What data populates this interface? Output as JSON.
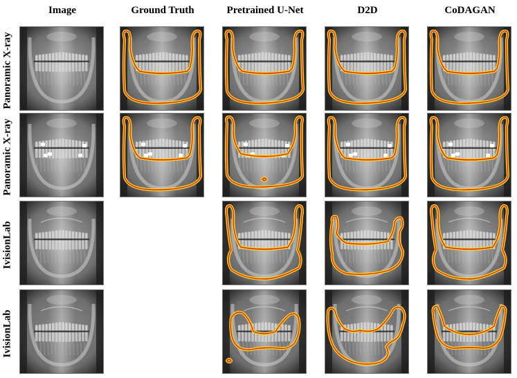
{
  "columns": [
    "Image",
    "Ground Truth",
    "Pretrained U-Net",
    "D2D",
    "CoDAGAN"
  ],
  "rows": [
    {
      "label": "Panoramic X-ray",
      "xray_style": "standard",
      "tiles": [
        {
          "type": "xray"
        },
        {
          "type": "seg",
          "shape": "upper-wide"
        },
        {
          "type": "seg",
          "shape": "upper-wide"
        },
        {
          "type": "seg",
          "shape": "upper-wide"
        },
        {
          "type": "seg",
          "shape": "upper-wide"
        }
      ]
    },
    {
      "label": "Panoramic X-ray",
      "xray_style": "restored",
      "tiles": [
        {
          "type": "xray"
        },
        {
          "type": "seg",
          "shape": "upper-wide"
        },
        {
          "type": "seg",
          "shape": "upper-wide-dot"
        },
        {
          "type": "seg",
          "shape": "upper-wide"
        },
        {
          "type": "seg",
          "shape": "upper-wide"
        }
      ]
    },
    {
      "label": "IvisionLab",
      "xray_style": "ivision",
      "tiles": [
        {
          "type": "xray"
        },
        {
          "type": "empty"
        },
        {
          "type": "seg",
          "shape": "mid-wide"
        },
        {
          "type": "seg",
          "shape": "mid-irregular"
        },
        {
          "type": "seg",
          "shape": "mid-wide"
        }
      ]
    },
    {
      "label": "IvisionLab",
      "xray_style": "ivision-dark",
      "tiles": [
        {
          "type": "xray"
        },
        {
          "type": "empty"
        },
        {
          "type": "seg",
          "shape": "low-fragment"
        },
        {
          "type": "seg",
          "shape": "low-irregular"
        },
        {
          "type": "seg",
          "shape": "low-wide"
        }
      ]
    }
  ],
  "colors": {
    "contour_outer": "#ffd21f",
    "contour_inner": "#d4281a",
    "xray_dark": "#1c1c1c",
    "xray_mid": "#6e6e6e",
    "xray_light": "#d8d8d8"
  }
}
